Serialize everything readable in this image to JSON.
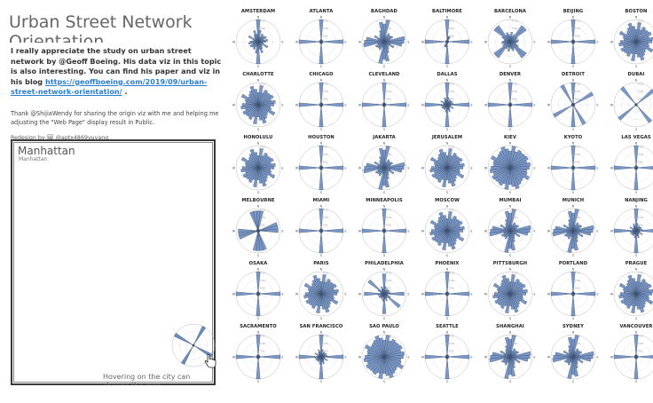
{
  "page_title": "Urban Street Network Orientation",
  "intro": {
    "line1": "I really appreciate the study on urban street network by @Geoff Boeing. His data viz in this topic is also interesting. You can find his paper and viz in his blog",
    "link": "https://geoffboeing.com/2019/09/urban-street-network-orientation/",
    "link_suffix": "."
  },
  "thanks": "Thank @ShijiaWendy for sharing the origin viz with me and helping me adjusting the \"Web Page\" display result in Public.",
  "redesign": "Redesign by 🖼 @aptx4869yuyang",
  "detail": {
    "city": "Manhattan",
    "city_small": "Manhattan",
    "hint": "Hovering on the city can change the map",
    "pattern": "manhattan",
    "rose_color": "#5a7fb3"
  },
  "compass": {
    "north": "N",
    "east": "E",
    "south": "S",
    "west": "W"
  },
  "ring_labels": [
    "0.15",
    "0.10",
    "0.05"
  ],
  "rose_color": "#6b8cc0",
  "cities": [
    {
      "name": "AMSTERDAM",
      "pattern": "amsterdam"
    },
    {
      "name": "ATLANTA",
      "pattern": "grid"
    },
    {
      "name": "BAGHDAD",
      "pattern": "mixed"
    },
    {
      "name": "BALTIMORE",
      "pattern": "grid_tilt"
    },
    {
      "name": "BARCELONA",
      "pattern": "diag"
    },
    {
      "name": "BEIJING",
      "pattern": "grid"
    },
    {
      "name": "BOSTON",
      "pattern": "round"
    },
    {
      "name": "CHARLOTTE",
      "pattern": "round"
    },
    {
      "name": "CHICAGO",
      "pattern": "grid"
    },
    {
      "name": "CLEVELAND",
      "pattern": "grid"
    },
    {
      "name": "DALLAS",
      "pattern": "grid_mixed"
    },
    {
      "name": "DENVER",
      "pattern": "grid"
    },
    {
      "name": "DETROIT",
      "pattern": "detroit"
    },
    {
      "name": "DUBAI",
      "pattern": "diag_bars"
    },
    {
      "name": "HONOLULU",
      "pattern": "round"
    },
    {
      "name": "HOUSTON",
      "pattern": "grid"
    },
    {
      "name": "JAKARTA",
      "pattern": "mixed"
    },
    {
      "name": "JERUSALEM",
      "pattern": "round"
    },
    {
      "name": "KIEV",
      "pattern": "round_big"
    },
    {
      "name": "KYOTO",
      "pattern": "grid"
    },
    {
      "name": "LAS VEGAS",
      "pattern": "grid"
    },
    {
      "name": "MELBOURNE",
      "pattern": "melbourne"
    },
    {
      "name": "MIAMI",
      "pattern": "grid"
    },
    {
      "name": "MINNEAPOLIS",
      "pattern": "grid"
    },
    {
      "name": "MOSCOW",
      "pattern": "round"
    },
    {
      "name": "MUMBAI",
      "pattern": "mixed"
    },
    {
      "name": "MUNICH",
      "pattern": "mixed"
    },
    {
      "name": "NANJING",
      "pattern": "grid_mixed"
    },
    {
      "name": "OSAKA",
      "pattern": "grid"
    },
    {
      "name": "PARIS",
      "pattern": "round"
    },
    {
      "name": "PHILADELPHIA",
      "pattern": "philly"
    },
    {
      "name": "PHOENIX",
      "pattern": "grid"
    },
    {
      "name": "PITTSBURGH",
      "pattern": "round"
    },
    {
      "name": "PORTLAND",
      "pattern": "grid"
    },
    {
      "name": "PRAGUE",
      "pattern": "round"
    },
    {
      "name": "SACRAMENTO",
      "pattern": "grid"
    },
    {
      "name": "SAN FRANCISCO",
      "pattern": "grid_mixed"
    },
    {
      "name": "SAO PAULO",
      "pattern": "round_big"
    },
    {
      "name": "SEATTLE",
      "pattern": "grid"
    },
    {
      "name": "SHANGHAI",
      "pattern": "mixed"
    },
    {
      "name": "SYDNEY",
      "pattern": "mixed"
    },
    {
      "name": "VANCOUVER",
      "pattern": "grid"
    }
  ]
}
